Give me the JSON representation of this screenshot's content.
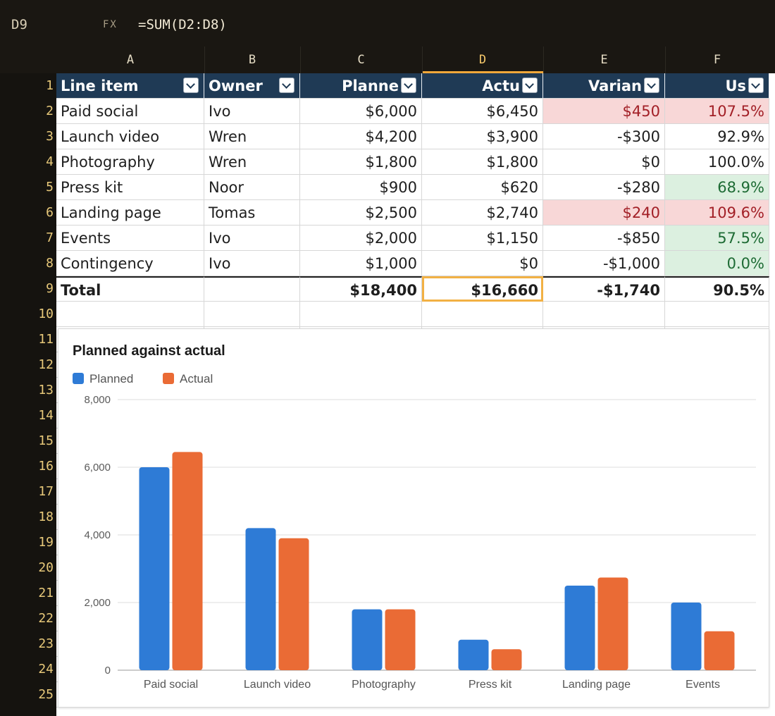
{
  "formula_bar": {
    "cell_ref": "D9",
    "fx_label": "FX",
    "formula": "=SUM(D2:D8)"
  },
  "columns": [
    "A",
    "B",
    "C",
    "D",
    "E",
    "F"
  ],
  "active_column": "D",
  "row_numbers": [
    "1",
    "2",
    "3",
    "4",
    "5",
    "6",
    "7",
    "8",
    "9",
    "10",
    "11",
    "12",
    "13",
    "14",
    "15",
    "16",
    "17",
    "18",
    "19",
    "20",
    "21",
    "22",
    "23",
    "24",
    "25"
  ],
  "table": {
    "headers": [
      "Line item",
      "Owner",
      "Planne",
      "Actu",
      "Varian",
      "Us"
    ],
    "rows": [
      {
        "item": "Paid social",
        "owner": "Ivo",
        "planned": "$6,000",
        "actual": "$6,450",
        "variance": "$450",
        "used": "107.5%",
        "status": "over"
      },
      {
        "item": "Launch video",
        "owner": "Wren",
        "planned": "$4,200",
        "actual": "$3,900",
        "variance": "-$300",
        "used": "92.9%",
        "status": "normal"
      },
      {
        "item": "Photography",
        "owner": "Wren",
        "planned": "$1,800",
        "actual": "$1,800",
        "variance": "$0",
        "used": "100.0%",
        "status": "normal"
      },
      {
        "item": "Press kit",
        "owner": "Noor",
        "planned": "$900",
        "actual": "$620",
        "variance": "-$280",
        "used": "68.9%",
        "status": "under"
      },
      {
        "item": "Landing page",
        "owner": "Tomas",
        "planned": "$2,500",
        "actual": "$2,740",
        "variance": "$240",
        "used": "109.6%",
        "status": "over"
      },
      {
        "item": "Events",
        "owner": "Ivo",
        "planned": "$2,000",
        "actual": "$1,150",
        "variance": "-$850",
        "used": "57.5%",
        "status": "under"
      },
      {
        "item": "Contingency",
        "owner": "Ivo",
        "planned": "$1,000",
        "actual": "$0",
        "variance": "-$1,000",
        "used": "0.0%",
        "status": "under"
      }
    ],
    "total": {
      "item": "Total",
      "owner": "",
      "planned": "$18,400",
      "actual": "$16,660",
      "variance": "-$1,740",
      "used": "90.5%"
    }
  },
  "colors": {
    "header_bg": "#1f3a55",
    "selection": "#f2b144",
    "over_bg": "#f8d7d7",
    "over_text": "#a21f26",
    "under_bg": "#dcf0e0",
    "under_text": "#1d6b34",
    "planned": "#2e7bd6",
    "actual": "#ea6b35"
  },
  "chart_data": {
    "type": "bar",
    "title": "Planned against actual",
    "categories": [
      "Paid social",
      "Launch video",
      "Photography",
      "Press kit",
      "Landing page",
      "Events"
    ],
    "series": [
      {
        "name": "Planned",
        "values": [
          6000,
          4200,
          1800,
          900,
          2500,
          2000
        ],
        "color": "#2e7bd6"
      },
      {
        "name": "Actual",
        "values": [
          6450,
          3900,
          1800,
          620,
          2740,
          1150
        ],
        "color": "#ea6b35"
      }
    ],
    "yticks": [
      "0",
      "2,000",
      "4,000",
      "6,000",
      "8,000"
    ],
    "ylim": [
      0,
      8000
    ],
    "legend": "top-left",
    "grid": true
  }
}
